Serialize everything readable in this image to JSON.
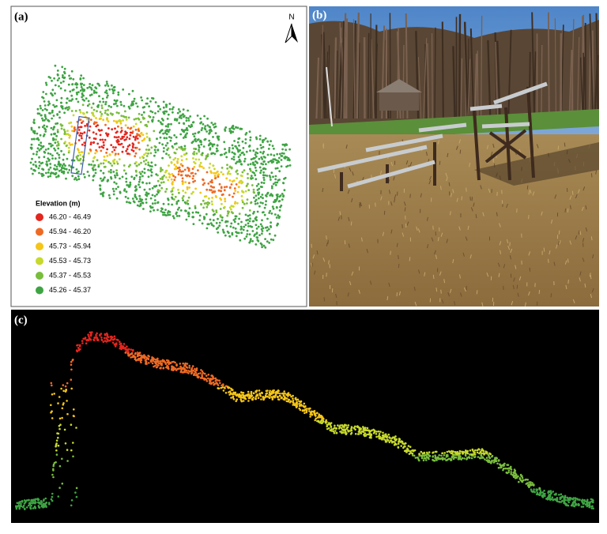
{
  "panels": {
    "a": {
      "label": "(a)",
      "north": "N",
      "legend": {
        "title": "Elevation (m)",
        "items": [
          {
            "label": "46.20 - 46.49",
            "color": "#e3261e"
          },
          {
            "label": "45.94 - 46.20",
            "color": "#ee6a24"
          },
          {
            "label": "45.73 - 45.94",
            "color": "#f5c518"
          },
          {
            "label": "45.53 - 45.73",
            "color": "#c7d92c"
          },
          {
            "label": "45.37 - 45.53",
            "color": "#79bd3c"
          },
          {
            "label": "45.26 - 45.37",
            "color": "#3ea443"
          }
        ]
      }
    },
    "b": {
      "label": "(b)"
    },
    "c": {
      "label": "(c)"
    }
  }
}
